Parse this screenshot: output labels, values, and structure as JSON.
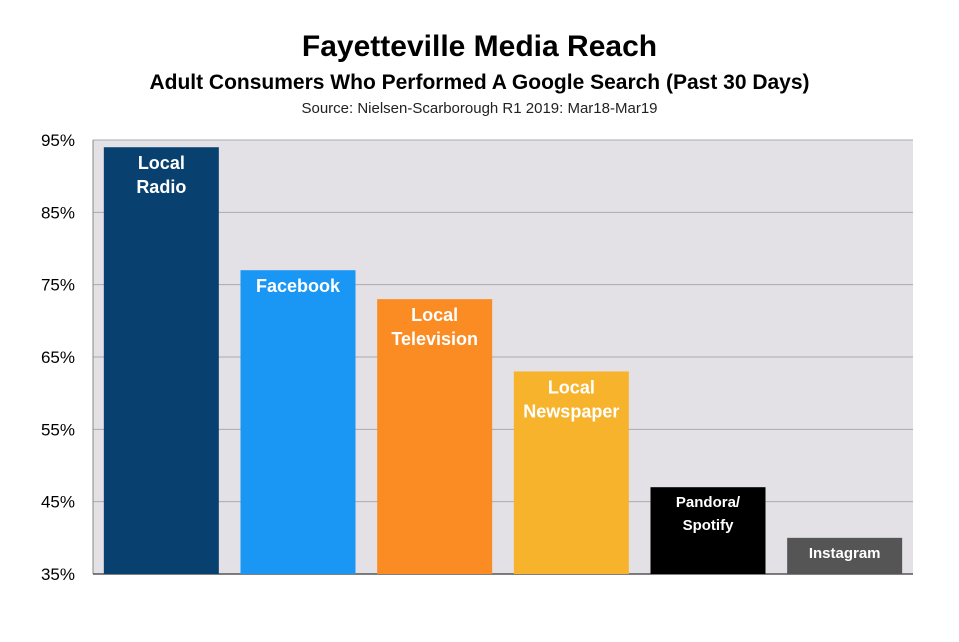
{
  "chart_data": {
    "type": "bar",
    "title": "Fayetteville Media Reach",
    "subtitle": "Adult Consumers Who Performed A Google Search (Past 30 Days)",
    "source": "Source: Nielsen-Scarborough R1 2019: Mar18-Mar19",
    "categories": [
      [
        "Local",
        "Radio"
      ],
      [
        "Facebook"
      ],
      [
        "Local",
        "Television"
      ],
      [
        "Local",
        "Newspaper"
      ],
      [
        "Pandora/",
        "Spotify"
      ],
      [
        "Instagram"
      ]
    ],
    "values": [
      94,
      77,
      73,
      63,
      47,
      40
    ],
    "colors": [
      "#08406F",
      "#1A97F5",
      "#FB8C24",
      "#F7B32B",
      "#000000",
      "#555555"
    ],
    "ylim": [
      35,
      95
    ],
    "yticks": [
      35,
      45,
      55,
      65,
      75,
      85,
      95
    ],
    "ytick_labels": [
      "35%",
      "45%",
      "55%",
      "65%",
      "75%",
      "85%",
      "95%"
    ],
    "grid": true,
    "plot_background": "#E3E1E6",
    "xlabel": "",
    "ylabel": ""
  }
}
